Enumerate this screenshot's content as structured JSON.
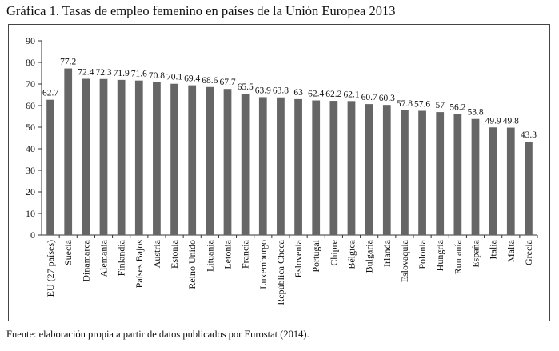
{
  "header": {
    "title": "Gráfica 1. Tasas de empleo femenino en países de la Unión Europea 2013"
  },
  "footer": {
    "source": "Fuente: elaboración propia a partir de datos publicados por Eurostat (2014)."
  },
  "chart_data": {
    "type": "bar",
    "title": "Gráfica 1. Tasas de empleo femenino en países de la Unión Europea 2013",
    "categories": [
      "EU (27 países)",
      "Suecia",
      "Dinamarca",
      "Alemania",
      "Finlandia",
      "Países Bajos",
      "Austria",
      "Estonia",
      "Reino Unido",
      "Lituania",
      "Letonia",
      "Francia",
      "Luxemburgo",
      "República Checa",
      "Eslovenia",
      "Portugal",
      "Chipre",
      "Bélgica",
      "Bulgaria",
      "Irlanda",
      "Eslovaquia",
      "Polonia",
      "Hungría",
      "Rumanía",
      "España",
      "Italia",
      "Malta",
      "Grecia"
    ],
    "values": [
      62.7,
      77.2,
      72.4,
      72.3,
      71.9,
      71.6,
      70.8,
      70.1,
      69.4,
      68.6,
      67.7,
      65.5,
      63.9,
      63.8,
      63,
      62.4,
      62.2,
      62.1,
      60.7,
      60.3,
      57.8,
      57.6,
      57,
      56.2,
      53.8,
      49.9,
      49.8,
      43.3
    ],
    "ylim": [
      0,
      90
    ],
    "yticks": [
      0,
      10,
      20,
      30,
      40,
      50,
      60,
      70,
      80,
      90
    ],
    "data_labels": true,
    "grid": false,
    "legend": "none",
    "bar_color": "#666666"
  }
}
